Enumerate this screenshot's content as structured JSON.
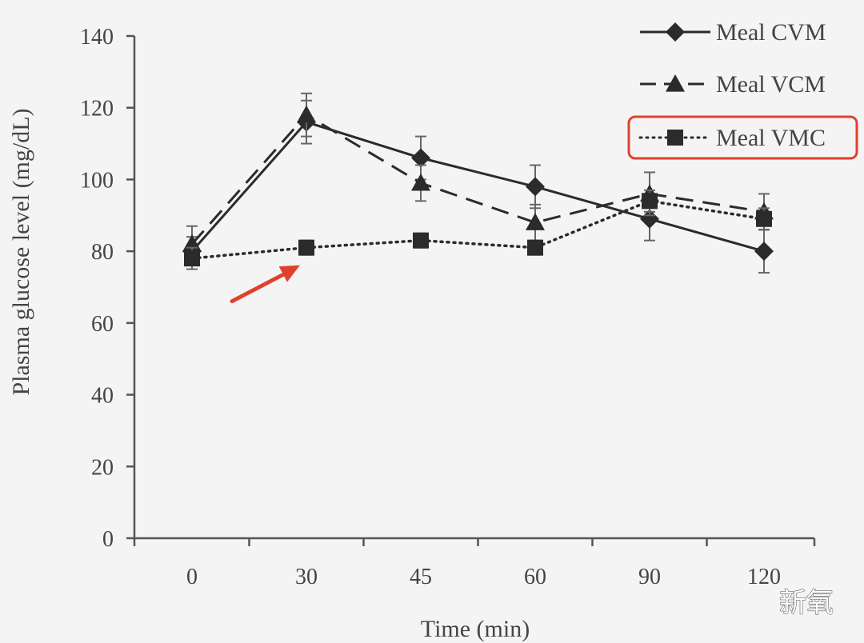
{
  "chart_data": {
    "type": "line",
    "title": "",
    "xlabel": "Time (min)",
    "ylabel": "Plasma glucose level (mg/dL)",
    "categories": [
      "0",
      "30",
      "45",
      "60",
      "90",
      "120"
    ],
    "ylim": [
      0,
      140
    ],
    "yticks": [
      "0",
      "20",
      "40",
      "60",
      "80",
      "100",
      "120",
      "140"
    ],
    "legend_position": "top-right",
    "series": [
      {
        "name": "Meal CVM",
        "style": "solid",
        "marker": "diamond",
        "values": [
          80,
          116,
          106,
          98,
          89,
          80
        ],
        "errors": [
          4,
          6,
          6,
          6,
          6,
          6
        ]
      },
      {
        "name": "Meal VCM",
        "style": "dashed",
        "marker": "triangle",
        "values": [
          82,
          118,
          99,
          88,
          96,
          91
        ],
        "errors": [
          5,
          6,
          5,
          5,
          6,
          5
        ]
      },
      {
        "name": "Meal VMC",
        "style": "dotted",
        "marker": "square",
        "values": [
          78,
          81,
          83,
          81,
          94,
          89
        ],
        "errors": [
          3,
          2,
          2,
          2,
          3,
          3
        ]
      }
    ],
    "highlighted_series": "Meal VMC",
    "highlight_color": "#e0412f",
    "arrow_target": {
      "category": "30",
      "value": 81
    },
    "line_color": "#2b2b2b"
  },
  "watermark": "新氧"
}
